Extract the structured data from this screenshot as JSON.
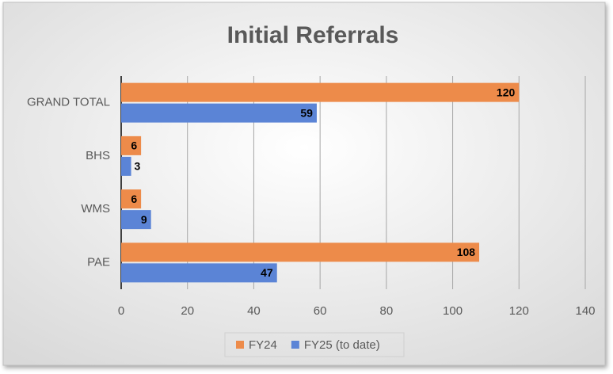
{
  "chart_data": {
    "type": "bar",
    "orientation": "horizontal",
    "title": "Initial Referrals",
    "categories": [
      "GRAND TOTAL",
      "BHS",
      "WMS",
      "PAE"
    ],
    "series": [
      {
        "name": "FY24",
        "color": "#ed8b4a",
        "values": [
          120,
          6,
          6,
          108
        ]
      },
      {
        "name": "FY25 (to date)",
        "color": "#5b84d6",
        "values": [
          59,
          3,
          9,
          47
        ]
      }
    ],
    "xlim": [
      0,
      140
    ],
    "xticks": [
      0,
      20,
      40,
      60,
      80,
      100,
      120,
      140
    ],
    "grid": true,
    "legend": "bottom"
  }
}
